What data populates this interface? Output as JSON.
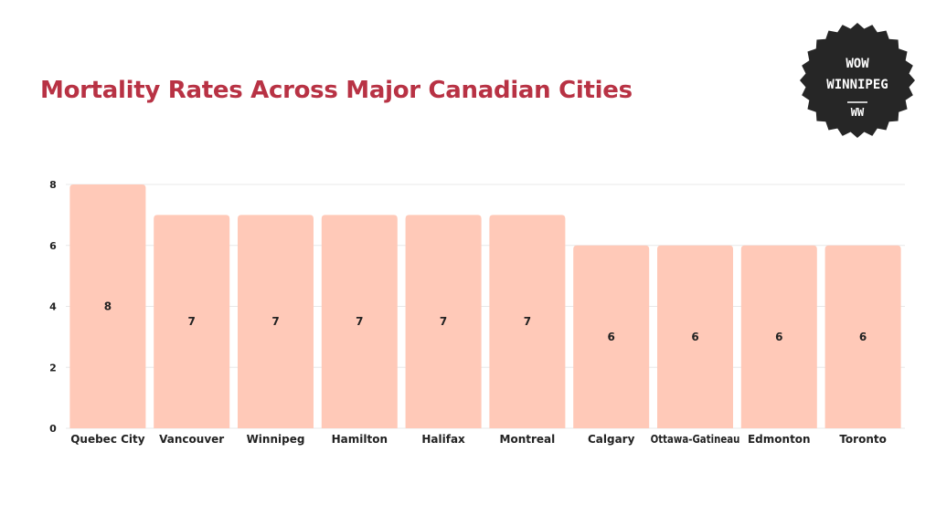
{
  "title": "Mortality Rates Across Major Canadian Cities",
  "colors": {
    "title": "#b83244",
    "bar": "#ffc9b8",
    "grid": "#e8e8e8",
    "text": "#222222",
    "badge_bg": "#262626",
    "badge_text": "#ffffff"
  },
  "badge": {
    "line1": "WOW",
    "line2": "WINNIPEG",
    "line3": "WW"
  },
  "chart_data": {
    "type": "bar",
    "categories": [
      "Quebec City",
      "Vancouver",
      "Winnipeg",
      "Hamilton",
      "Halifax",
      "Montreal",
      "Calgary",
      "Ottawa-Gatineau",
      "Edmonton",
      "Toronto"
    ],
    "values": [
      8,
      7,
      7,
      7,
      7,
      7,
      6,
      6,
      6,
      6
    ],
    "data_labels": [
      "8",
      "7",
      "7",
      "7",
      "7",
      "7",
      "6",
      "6",
      "6",
      "6"
    ],
    "y_ticks": [
      "0",
      "2",
      "4",
      "6",
      "8"
    ],
    "ylim": [
      0,
      8
    ],
    "grid": true,
    "legend": "none"
  }
}
